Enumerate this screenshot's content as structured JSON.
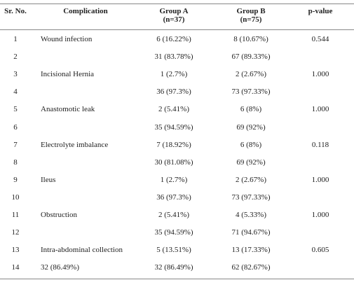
{
  "table": {
    "header": [
      "Sr. No.",
      "Complication",
      [
        "Group A",
        "(n=37)"
      ],
      [
        "Group B",
        "(n=75)"
      ],
      "p-value"
    ],
    "rows": [
      [
        "1",
        "Wound infection",
        "6 (16.22%)",
        "8 (10.67%)",
        "0.544"
      ],
      [
        "2",
        null,
        "31 (83.78%)",
        "67 (89.33%)",
        null
      ],
      [
        "3",
        "Incisional Hernia",
        "1 (2.7%)",
        "2 (2.67%)",
        "1.000"
      ],
      [
        "4",
        null,
        "36 (97.3%)",
        "73 (97.33%)",
        null
      ],
      [
        "5",
        "Anastomotic leak",
        "2 (5.41%)",
        "6 (8%)",
        "1.000"
      ],
      [
        "6",
        null,
        "35 (94.59%)",
        "69 (92%)",
        null
      ],
      [
        "7",
        "Electrolyte imbalance",
        "7 (18.92%)",
        "6 (8%)",
        "0.118"
      ],
      [
        "8",
        null,
        "30 (81.08%)",
        "69 (92%)",
        null
      ],
      [
        "9",
        "Ileus",
        "1 (2.7%)",
        "2 (2.67%)",
        "1.000"
      ],
      [
        "10",
        null,
        "36 (97.3%)",
        "73 (97.33%)",
        null
      ],
      [
        "11",
        "Obstruction",
        "2 (5.41%)",
        "4 (5.33%)",
        "1.000"
      ],
      [
        "12",
        null,
        "35 (94.59%)",
        "71 (94.67%)",
        null
      ],
      [
        "13",
        "Intra-abdominal collection",
        "5 (13.51%)",
        "13 (17.33%)",
        "0.605"
      ],
      [
        "14",
        "32 (86.49%)",
        "32 (86.49%)",
        "62 (82.67%)",
        null
      ]
    ]
  }
}
